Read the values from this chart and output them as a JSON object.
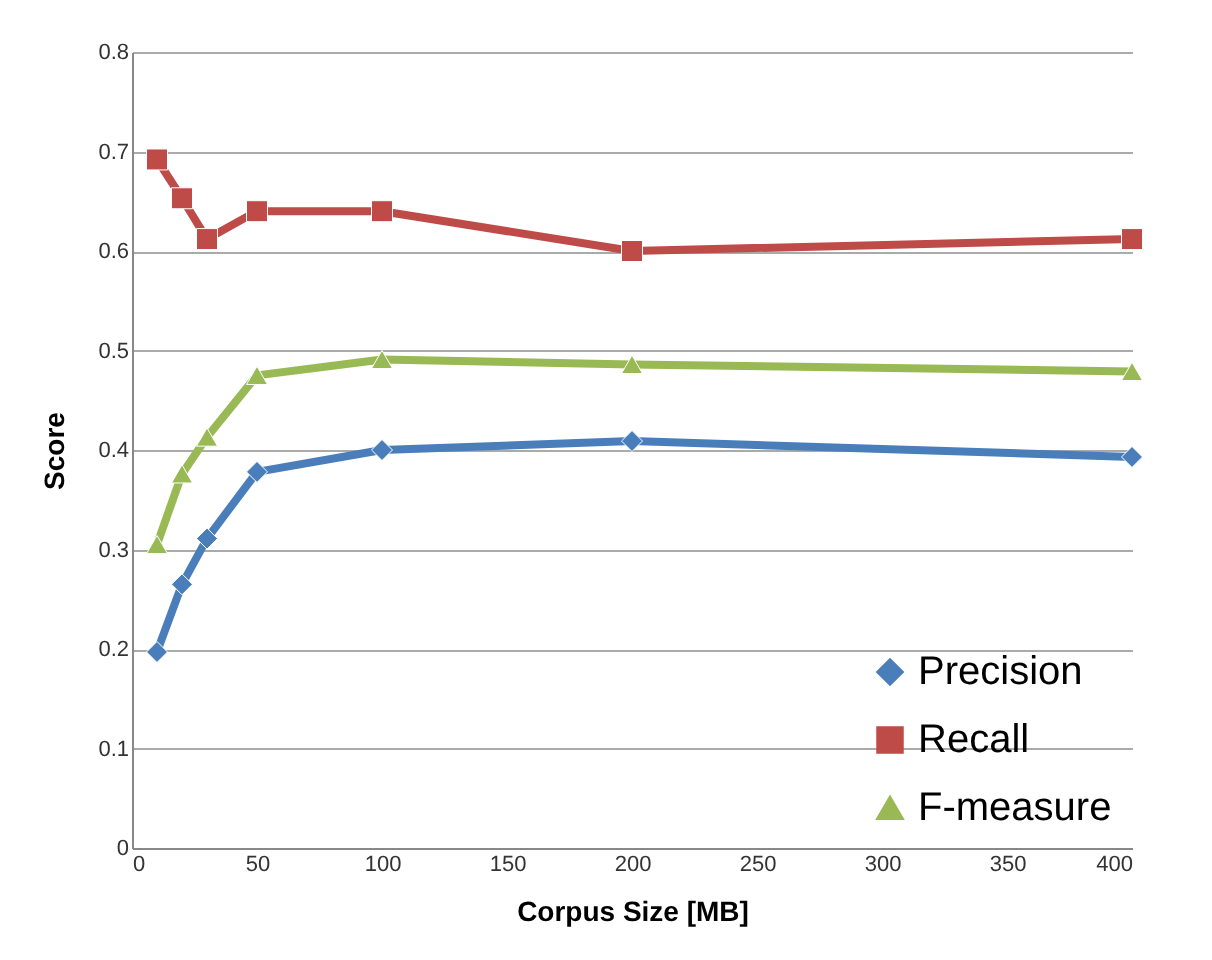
{
  "chart_data": {
    "type": "line",
    "xlabel": "Corpus Size [MB]",
    "ylabel": "Score",
    "x": [
      10,
      20,
      30,
      50,
      100,
      200,
      400
    ],
    "series": [
      {
        "name": "Precision",
        "color": "#4a7ebb",
        "marker": "diamond",
        "values": [
          0.197,
          0.265,
          0.311,
          0.378,
          0.4,
          0.409,
          0.393
        ]
      },
      {
        "name": "Recall",
        "color": "#be4b48",
        "marker": "square",
        "values": [
          0.692,
          0.653,
          0.612,
          0.64,
          0.64,
          0.6,
          0.612
        ]
      },
      {
        "name": "F-measure",
        "color": "#98b954",
        "marker": "triangle",
        "values": [
          0.305,
          0.376,
          0.413,
          0.475,
          0.491,
          0.486,
          0.479
        ]
      }
    ],
    "xlim": [
      0,
      400
    ],
    "xticks": [
      0,
      50,
      100,
      150,
      200,
      250,
      300,
      350,
      400
    ],
    "ylim": [
      0,
      0.8
    ],
    "yticks": [
      0,
      0.1,
      0.2,
      0.3,
      0.4,
      0.5,
      0.6,
      0.7,
      0.8
    ],
    "grid": "y",
    "legend": "bottom right",
    "line_style": "solid"
  }
}
